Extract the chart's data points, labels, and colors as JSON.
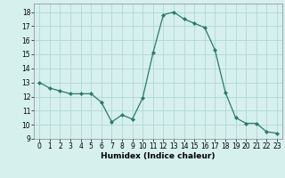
{
  "x": [
    0,
    1,
    2,
    3,
    4,
    5,
    6,
    7,
    8,
    9,
    10,
    11,
    12,
    13,
    14,
    15,
    16,
    17,
    18,
    19,
    20,
    21,
    22,
    23
  ],
  "y": [
    13.0,
    12.6,
    12.4,
    12.2,
    12.2,
    12.2,
    11.6,
    10.2,
    10.7,
    10.4,
    11.9,
    15.1,
    17.8,
    18.0,
    17.5,
    17.2,
    16.9,
    15.3,
    12.3,
    10.5,
    10.1,
    10.1,
    9.5,
    9.4
  ],
  "xlabel": "Humidex (Indice chaleur)",
  "xlim": [
    -0.5,
    23.5
  ],
  "ylim": [
    9,
    18.6
  ],
  "yticks": [
    9,
    10,
    11,
    12,
    13,
    14,
    15,
    16,
    17,
    18
  ],
  "xticks": [
    0,
    1,
    2,
    3,
    4,
    5,
    6,
    7,
    8,
    9,
    10,
    11,
    12,
    13,
    14,
    15,
    16,
    17,
    18,
    19,
    20,
    21,
    22,
    23
  ],
  "line_color": "#2a7a6a",
  "marker": "D",
  "marker_size": 2.0,
  "bg_color": "#d6f0ee",
  "grid_color": "#b0d8d4",
  "label_fontsize": 6.5,
  "tick_fontsize": 5.5
}
